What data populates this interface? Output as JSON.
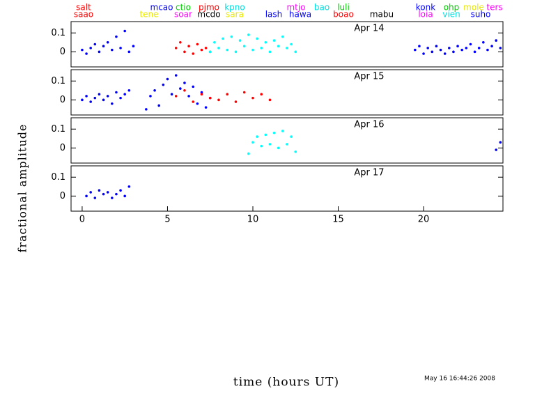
{
  "figure": {
    "ylabel": "fractional amplitude",
    "xlabel": "time (hours UT)",
    "timestamp": "May 16 16:44:26 2008",
    "sites_upper": [
      {
        "name": "salt",
        "color": "#ff0000"
      },
      {
        "name": "mcao",
        "color": "#0000ff"
      },
      {
        "name": "ctio",
        "color": "#00cc00"
      },
      {
        "name": "pjmo",
        "color": "#ff0000"
      },
      {
        "name": "kpno",
        "color": "#00e0e0"
      },
      {
        "name": "mtjo",
        "color": "#ff00ff"
      },
      {
        "name": "bao",
        "color": "#00e0e0"
      },
      {
        "name": "luli",
        "color": "#00cc00"
      },
      {
        "name": "konk",
        "color": "#0000ff"
      },
      {
        "name": "ohp",
        "color": "#00cc00"
      },
      {
        "name": "mole",
        "color": "#e8e800"
      },
      {
        "name": "ters",
        "color": "#ff00ff"
      }
    ],
    "sites_lower": [
      {
        "name": "saao",
        "color": "#ff0000"
      },
      {
        "name": "tene",
        "color": "#e8e800"
      },
      {
        "name": "soar",
        "color": "#ff00ff"
      },
      {
        "name": "mcdo",
        "color": "#000000"
      },
      {
        "name": "sara",
        "color": "#e8e800"
      },
      {
        "name": "lash",
        "color": "#0000ff"
      },
      {
        "name": "hawa",
        "color": "#0000ff"
      },
      {
        "name": "boao",
        "color": "#ff0000"
      },
      {
        "name": "mabu",
        "color": "#000000"
      },
      {
        "name": "loia",
        "color": "#ff00ff"
      },
      {
        "name": "vien",
        "color": "#00e0e0"
      },
      {
        "name": "suho",
        "color": "#0000ff"
      }
    ]
  },
  "chart_data": [
    {
      "type": "scatter",
      "title": "Apr 14",
      "xlim": [
        -0.65,
        24.65
      ],
      "ylim": [
        -0.08,
        0.16
      ],
      "yticks": [
        0,
        0.1
      ],
      "series": [
        {
          "color": "#0000ff",
          "x": [
            0,
            0.25,
            0.5,
            0.75,
            1,
            1.25,
            1.5,
            1.75,
            2,
            2.25,
            2.5,
            2.75,
            3
          ],
          "values": [
            0.01,
            -0.01,
            0.02,
            0.04,
            0.0,
            0.03,
            0.05,
            0.01,
            0.08,
            0.02,
            0.11,
            0.0,
            0.03
          ]
        },
        {
          "color": "#ff0000",
          "x": [
            5.5,
            5.75,
            6,
            6.25,
            6.5,
            6.75,
            7,
            7.25,
            7.5
          ],
          "values": [
            0.02,
            0.05,
            0.0,
            0.03,
            -0.01,
            0.04,
            0.01,
            0.02,
            0.0
          ]
        },
        {
          "color": "#00ffff",
          "x": [
            7.5,
            7.75,
            8,
            8.25,
            8.5,
            8.75,
            9,
            9.25,
            9.5,
            9.75,
            10,
            10.25,
            10.5,
            10.75,
            11,
            11.25,
            11.5,
            11.75,
            12,
            12.25,
            12.5
          ],
          "values": [
            0.0,
            0.05,
            0.02,
            0.07,
            0.01,
            0.08,
            0.0,
            0.06,
            0.03,
            0.09,
            0.01,
            0.07,
            0.02,
            0.05,
            0.0,
            0.06,
            0.03,
            0.08,
            0.02,
            0.04,
            0.0
          ]
        },
        {
          "color": "#0000ff",
          "x": [
            19.5,
            19.75,
            20,
            20.25,
            20.5,
            20.75,
            21,
            21.25,
            21.5,
            21.75,
            22,
            22.25,
            22.5,
            22.75,
            23,
            23.25,
            23.5,
            23.75,
            24,
            24.25,
            24.5
          ],
          "values": [
            0.01,
            0.03,
            -0.01,
            0.02,
            0.0,
            0.03,
            0.01,
            -0.01,
            0.02,
            0.0,
            0.03,
            0.01,
            0.02,
            0.04,
            0.0,
            0.02,
            0.05,
            0.01,
            0.03,
            0.06,
            0.02
          ]
        }
      ]
    },
    {
      "type": "scatter",
      "title": "Apr 15",
      "xlim": [
        -0.65,
        24.65
      ],
      "ylim": [
        -0.08,
        0.16
      ],
      "yticks": [
        0,
        0.1
      ],
      "series": [
        {
          "color": "#0000ff",
          "x": [
            0,
            0.25,
            0.5,
            0.75,
            1,
            1.25,
            1.5,
            1.75,
            2,
            2.25,
            2.5,
            2.75
          ],
          "values": [
            0.0,
            0.02,
            -0.01,
            0.01,
            0.03,
            0.0,
            0.02,
            -0.02,
            0.04,
            0.01,
            0.03,
            0.05
          ]
        },
        {
          "color": "#0000ff",
          "x": [
            3.75,
            4,
            4.25,
            4.5,
            4.75,
            5,
            5.25,
            5.5,
            5.75,
            6,
            6.25,
            6.5,
            6.75,
            7,
            7.25,
            7.5
          ],
          "values": [
            -0.05,
            0.02,
            0.05,
            -0.03,
            0.08,
            0.11,
            0.03,
            0.13,
            0.06,
            0.09,
            0.02,
            0.07,
            -0.02,
            0.04,
            -0.04,
            0.01
          ]
        },
        {
          "color": "#ff0000",
          "x": [
            5.5,
            6,
            6.5,
            7,
            7.5,
            8,
            8.5,
            9,
            9.5,
            10,
            10.5,
            11
          ],
          "values": [
            0.02,
            0.05,
            -0.01,
            0.03,
            0.01,
            0.0,
            0.03,
            -0.01,
            0.04,
            0.01,
            0.03,
            0.0
          ]
        }
      ]
    },
    {
      "type": "scatter",
      "title": "Apr 16",
      "xlim": [
        -0.65,
        24.65
      ],
      "ylim": [
        -0.08,
        0.16
      ],
      "yticks": [
        0,
        0.1
      ],
      "series": [
        {
          "color": "#00ffff",
          "x": [
            9.75,
            10,
            10.25,
            10.5,
            10.75,
            11,
            11.25,
            11.5,
            11.75,
            12,
            12.25,
            12.5
          ],
          "values": [
            -0.03,
            0.03,
            0.06,
            0.01,
            0.07,
            0.02,
            0.08,
            0.0,
            0.09,
            0.02,
            0.06,
            -0.02
          ]
        },
        {
          "color": "#0000ff",
          "x": [
            24.25,
            24.5
          ],
          "values": [
            -0.01,
            0.03
          ]
        }
      ]
    },
    {
      "type": "scatter",
      "title": "Apr 17",
      "xlim": [
        -0.65,
        24.65
      ],
      "ylim": [
        -0.08,
        0.16
      ],
      "yticks": [
        0,
        0.1
      ],
      "xticks": [
        0,
        5,
        10,
        15,
        20
      ],
      "series": [
        {
          "color": "#0000ff",
          "x": [
            0.25,
            0.5,
            0.75,
            1,
            1.25,
            1.5,
            1.75,
            2,
            2.25,
            2.5,
            2.75
          ],
          "values": [
            0.0,
            0.02,
            -0.01,
            0.03,
            0.01,
            0.02,
            -0.01,
            0.01,
            0.03,
            0.0,
            0.05
          ]
        }
      ]
    }
  ]
}
